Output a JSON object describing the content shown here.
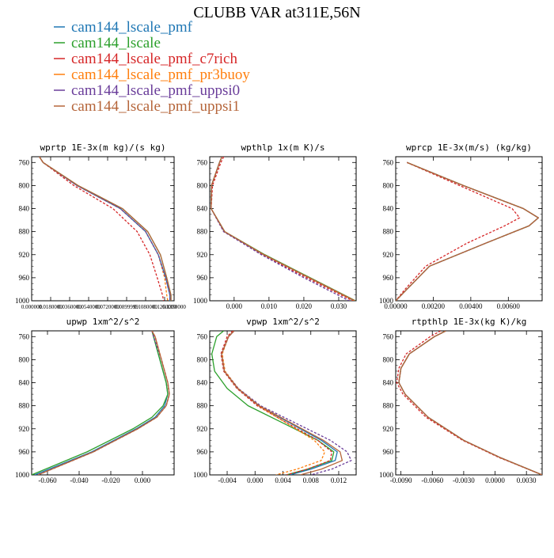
{
  "title": "CLUBB VAR at311E,56N",
  "colors": {
    "cam144_lscale_pmf": "#1f77b4",
    "cam144_lscale": "#2ca02c",
    "cam144_lscale_pmf_c7rich": "#d62728",
    "cam144_lscale_pmf_pr3buoy": "#ff7f0e",
    "cam144_lscale_pmf_uppsi0": "#6a3d9a",
    "cam144_lscale_pmf_uppsi1": "#b5653a"
  },
  "legend": [
    {
      "name": "cam144_lscale_pmf",
      "color": "#1f77b4",
      "dashed": false
    },
    {
      "name": "cam144_lscale",
      "color": "#2ca02c",
      "dashed": false
    },
    {
      "name": "cam144_lscale_pmf_c7rich",
      "color": "#d62728",
      "dashed": true
    },
    {
      "name": "cam144_lscale_pmf_pr3buoy",
      "color": "#ff7f0e",
      "dashed": true
    },
    {
      "name": "cam144_lscale_pmf_uppsi0",
      "color": "#6a3d9a",
      "dashed": true
    },
    {
      "name": "cam144_lscale_pmf_uppsi1",
      "color": "#b5653a",
      "dashed": false
    }
  ],
  "chart_data": [
    {
      "type": "line",
      "title": "wprtp  1E-3x(m kg)/(s kg)",
      "ylim": [
        1000,
        750
      ],
      "xlim": [
        0,
        0.135
      ],
      "y_ticks": [
        760,
        800,
        840,
        880,
        920,
        960,
        1000
      ],
      "x_ticks": [
        {
          "v": 0.0,
          "l": "0.000000"
        },
        {
          "v": 0.018,
          "l": "0.0180000"
        },
        {
          "v": 0.036,
          "l": "0.0360000"
        },
        {
          "v": 0.054,
          "l": "0.0540000"
        },
        {
          "v": 0.072,
          "l": "0.0720000"
        },
        {
          "v": 0.09,
          "l": "0.0899999"
        },
        {
          "v": 0.108,
          "l": "0.1080000"
        },
        {
          "v": 0.126,
          "l": "0.1260000"
        },
        {
          "v": 0.135,
          "l": "0.1350000"
        }
      ],
      "y": [
        750,
        760,
        800,
        840,
        880,
        920,
        960,
        990,
        1000
      ],
      "series": [
        {
          "name": "cam144_lscale_pmf",
          "x": [
            0.0073,
            0.0108,
            0.043,
            0.084,
            0.108,
            0.12,
            0.127,
            0.131,
            0.131
          ]
        },
        {
          "name": "cam144_lscale",
          "x": [
            0.0073,
            0.0108,
            0.044,
            0.086,
            0.11,
            0.122,
            0.128,
            0.132,
            0.132
          ]
        },
        {
          "name": "cam144_lscale_pmf_c7rich",
          "x": [
            0.0073,
            0.0108,
            0.04,
            0.077,
            0.1,
            0.112,
            0.119,
            0.124,
            0.125
          ]
        },
        {
          "name": "cam144_lscale_pmf_pr3buoy",
          "x": [
            0.0073,
            0.0108,
            0.043,
            0.084,
            0.108,
            0.12,
            0.126,
            0.128,
            0.129
          ]
        },
        {
          "name": "cam144_lscale_pmf_uppsi0",
          "x": [
            0.0073,
            0.0108,
            0.043,
            0.084,
            0.108,
            0.12,
            0.127,
            0.131,
            0.131
          ]
        },
        {
          "name": "cam144_lscale_pmf_uppsi1",
          "x": [
            0.0073,
            0.0108,
            0.044,
            0.086,
            0.11,
            0.122,
            0.128,
            0.132,
            0.132
          ]
        }
      ]
    },
    {
      "type": "line",
      "title": "wpthlp  1x(m K)/s",
      "ylim": [
        1000,
        750
      ],
      "xlim": [
        -0.007,
        0.035
      ],
      "y_ticks": [
        760,
        800,
        840,
        880,
        920,
        960,
        1000
      ],
      "x_ticks": [
        {
          "v": 0.0,
          "l": "0.000"
        },
        {
          "v": 0.01,
          "l": "0.010"
        },
        {
          "v": 0.02,
          "l": "0.020"
        },
        {
          "v": 0.03,
          "l": "0.030"
        }
      ],
      "y": [
        750,
        760,
        800,
        840,
        880,
        920,
        960,
        1000
      ],
      "series": [
        {
          "name": "cam144_lscale_pmf",
          "x": [
            -0.0035,
            -0.0042,
            -0.0065,
            -0.0066,
            -0.0028,
            0.0085,
            0.0215,
            0.0345
          ]
        },
        {
          "name": "cam144_lscale",
          "x": [
            -0.0035,
            -0.0042,
            -0.0065,
            -0.0066,
            -0.0027,
            0.0088,
            0.0218,
            0.0348
          ]
        },
        {
          "name": "cam144_lscale_pmf_c7rich",
          "x": [
            -0.003,
            -0.0038,
            -0.0062,
            -0.0066,
            -0.003,
            0.008,
            0.0208,
            0.034
          ]
        },
        {
          "name": "cam144_lscale_pmf_pr3buoy",
          "x": [
            -0.0035,
            -0.0042,
            -0.0065,
            -0.0066,
            -0.0028,
            0.0085,
            0.0215,
            0.0345
          ]
        },
        {
          "name": "cam144_lscale_pmf_uppsi0",
          "x": [
            -0.0035,
            -0.0042,
            -0.0065,
            -0.0066,
            -0.003,
            0.0078,
            0.02,
            0.033
          ]
        },
        {
          "name": "cam144_lscale_pmf_uppsi1",
          "x": [
            -0.0035,
            -0.0042,
            -0.0065,
            -0.0066,
            -0.0027,
            0.0086,
            0.0216,
            0.0347
          ]
        }
      ]
    },
    {
      "type": "line",
      "title": "wprcp  1E-3x(m/s) (kg/kg)",
      "ylim": [
        1000,
        750
      ],
      "xlim": [
        0,
        0.0078
      ],
      "y_ticks": [
        760,
        800,
        840,
        880,
        920,
        960,
        1000
      ],
      "x_ticks": [
        {
          "v": 0.0,
          "l": "0.00000"
        },
        {
          "v": 0.002,
          "l": "0.00200"
        },
        {
          "v": 0.004,
          "l": "0.00400"
        },
        {
          "v": 0.006,
          "l": "0.00600"
        }
      ],
      "y": [
        760,
        800,
        840,
        856,
        870,
        900,
        940,
        980,
        1000
      ],
      "series": [
        {
          "name": "cam144_lscale_pmf",
          "x": [
            0.0006,
            0.0036,
            0.0068,
            0.0076,
            0.0071,
            0.0048,
            0.0018,
            0.0006,
            0.0
          ]
        },
        {
          "name": "cam144_lscale",
          "x": [
            0.0006,
            0.0036,
            0.0068,
            0.0076,
            0.0071,
            0.0048,
            0.0018,
            0.0006,
            0.0
          ]
        },
        {
          "name": "cam144_lscale_pmf_c7rich",
          "x": [
            0.0006,
            0.0034,
            0.0062,
            0.0066,
            0.0058,
            0.0038,
            0.0016,
            0.0005,
            0.0
          ]
        },
        {
          "name": "cam144_lscale_pmf_pr3buoy",
          "x": [
            0.0006,
            0.0036,
            0.0068,
            0.0076,
            0.0071,
            0.0048,
            0.0018,
            0.0006,
            0.0
          ]
        },
        {
          "name": "cam144_lscale_pmf_uppsi0",
          "x": [
            0.0006,
            0.0036,
            0.0068,
            0.0076,
            0.0071,
            0.0048,
            0.0018,
            0.0006,
            0.0
          ]
        },
        {
          "name": "cam144_lscale_pmf_uppsi1",
          "x": [
            0.0006,
            0.0036,
            0.0068,
            0.0076,
            0.0071,
            0.0048,
            0.0018,
            0.0006,
            0.0
          ]
        }
      ]
    },
    {
      "type": "line",
      "title": "upwp  1xm^2/s^2",
      "ylim": [
        1000,
        750
      ],
      "xlim": [
        -0.07,
        0.02
      ],
      "y_ticks": [
        760,
        800,
        840,
        880,
        920,
        960,
        1000
      ],
      "x_ticks": [
        {
          "v": -0.06,
          "l": "-0.060"
        },
        {
          "v": -0.04,
          "l": "-0.040"
        },
        {
          "v": -0.02,
          "l": "-0.020"
        },
        {
          "v": 0.0,
          "l": "0.000"
        }
      ],
      "y": [
        750,
        760,
        800,
        840,
        860,
        880,
        900,
        920,
        960,
        1000
      ],
      "series": [
        {
          "name": "cam144_lscale_pmf",
          "x": [
            0.006,
            0.007,
            0.011,
            0.015,
            0.016,
            0.014,
            0.008,
            -0.004,
            -0.032,
            -0.068
          ]
        },
        {
          "name": "cam144_lscale",
          "x": [
            0.006,
            0.007,
            0.011,
            0.015,
            0.016,
            0.013,
            0.006,
            -0.006,
            -0.035,
            -0.07
          ]
        },
        {
          "name": "cam144_lscale_pmf_c7rich",
          "x": [
            0.006,
            0.008,
            0.012,
            0.016,
            0.017,
            0.015,
            0.009,
            -0.003,
            -0.031,
            -0.066
          ]
        },
        {
          "name": "cam144_lscale_pmf_pr3buoy",
          "x": [
            0.006,
            0.008,
            0.012,
            0.016,
            0.017,
            0.015,
            0.009,
            -0.003,
            -0.031,
            -0.066
          ]
        },
        {
          "name": "cam144_lscale_pmf_uppsi0",
          "x": [
            0.006,
            0.007,
            0.012,
            0.016,
            0.017,
            0.015,
            0.009,
            -0.003,
            -0.031,
            -0.066
          ]
        },
        {
          "name": "cam144_lscale_pmf_uppsi1",
          "x": [
            0.006,
            0.008,
            0.012,
            0.016,
            0.017,
            0.015,
            0.009,
            -0.003,
            -0.031,
            -0.066
          ]
        }
      ]
    },
    {
      "type": "line",
      "title": "vpwp  1xm^2/s^2",
      "ylim": [
        1000,
        750
      ],
      "xlim": [
        -0.0065,
        0.0145
      ],
      "y_ticks": [
        760,
        800,
        840,
        880,
        920,
        960,
        1000
      ],
      "x_ticks": [
        {
          "v": -0.004,
          "l": "-0.004"
        },
        {
          "v": 0.0,
          "l": "0.000"
        },
        {
          "v": 0.004,
          "l": "0.004"
        },
        {
          "v": 0.008,
          "l": "0.008"
        },
        {
          "v": 0.012,
          "l": "0.012"
        }
      ],
      "y": [
        750,
        760,
        790,
        820,
        850,
        880,
        910,
        940,
        960,
        975,
        990,
        1000
      ],
      "series": [
        {
          "name": "cam144_lscale_pmf",
          "x": [
            -0.003,
            -0.0038,
            -0.0048,
            -0.0044,
            -0.0025,
            0.0005,
            0.005,
            0.0095,
            0.0118,
            0.0115,
            0.008,
            0.005
          ]
        },
        {
          "name": "cam144_lscale",
          "x": [
            -0.0045,
            -0.0055,
            -0.0062,
            -0.0058,
            -0.004,
            -0.001,
            0.004,
            0.009,
            0.0113,
            0.011,
            0.0075,
            0.0045
          ]
        },
        {
          "name": "cam144_lscale_pmf_c7rich",
          "x": [
            -0.0032,
            -0.004,
            -0.0049,
            -0.0045,
            -0.0026,
            0.0003,
            0.0046,
            0.009,
            0.011,
            0.0108,
            0.0075,
            0.0045
          ]
        },
        {
          "name": "cam144_lscale_pmf_pr3buoy",
          "x": [
            -0.003,
            -0.0038,
            -0.0047,
            -0.0043,
            -0.0024,
            0.0005,
            0.0045,
            0.0085,
            0.01,
            0.0095,
            0.006,
            0.003
          ]
        },
        {
          "name": "cam144_lscale_pmf_uppsi0",
          "x": [
            -0.003,
            -0.0038,
            -0.0048,
            -0.0044,
            -0.0024,
            0.0008,
            0.0058,
            0.0108,
            0.0132,
            0.0138,
            0.011,
            0.008
          ]
        },
        {
          "name": "cam144_lscale_pmf_uppsi1",
          "x": [
            -0.003,
            -0.0038,
            -0.0048,
            -0.0044,
            -0.0025,
            0.0006,
            0.0052,
            0.0098,
            0.0122,
            0.0125,
            0.0095,
            0.0065
          ]
        }
      ]
    },
    {
      "type": "line",
      "title": "rtpthlp  1E-3x(kg K)/kg",
      "ylim": [
        1000,
        750
      ],
      "xlim": [
        -0.0095,
        0.0045
      ],
      "y_ticks": [
        760,
        800,
        840,
        880,
        920,
        960,
        1000
      ],
      "x_ticks": [
        {
          "v": -0.009,
          "l": "-0.0090"
        },
        {
          "v": -0.006,
          "l": "-0.0060"
        },
        {
          "v": -0.003,
          "l": "-0.0030"
        },
        {
          "v": 0.0,
          "l": "0.0000"
        },
        {
          "v": 0.003,
          "l": "0.0030"
        }
      ],
      "y": [
        750,
        760,
        790,
        815,
        840,
        860,
        900,
        940,
        970,
        1000
      ],
      "series": [
        {
          "name": "cam144_lscale_pmf",
          "x": [
            -0.0047,
            -0.0058,
            -0.0082,
            -0.009,
            -0.0092,
            -0.0086,
            -0.0064,
            -0.003,
            0.0005,
            0.0045
          ]
        },
        {
          "name": "cam144_lscale",
          "x": [
            -0.0047,
            -0.0058,
            -0.0082,
            -0.009,
            -0.0092,
            -0.0086,
            -0.0064,
            -0.003,
            0.0005,
            0.0045
          ]
        },
        {
          "name": "cam144_lscale_pmf_c7rich",
          "x": [
            -0.0052,
            -0.0062,
            -0.0085,
            -0.0092,
            -0.0094,
            -0.0088,
            -0.0066,
            -0.0031,
            0.0004,
            0.0045
          ]
        },
        {
          "name": "cam144_lscale_pmf_pr3buoy",
          "x": [
            -0.0047,
            -0.0058,
            -0.0082,
            -0.009,
            -0.0092,
            -0.0086,
            -0.0064,
            -0.003,
            0.0005,
            0.0045
          ]
        },
        {
          "name": "cam144_lscale_pmf_uppsi0",
          "x": [
            -0.0047,
            -0.0058,
            -0.0082,
            -0.009,
            -0.0092,
            -0.0086,
            -0.0064,
            -0.003,
            0.0005,
            0.0045
          ]
        },
        {
          "name": "cam144_lscale_pmf_uppsi1",
          "x": [
            -0.0047,
            -0.0058,
            -0.0082,
            -0.009,
            -0.0092,
            -0.0086,
            -0.0064,
            -0.003,
            0.0005,
            0.0045
          ]
        }
      ]
    }
  ]
}
